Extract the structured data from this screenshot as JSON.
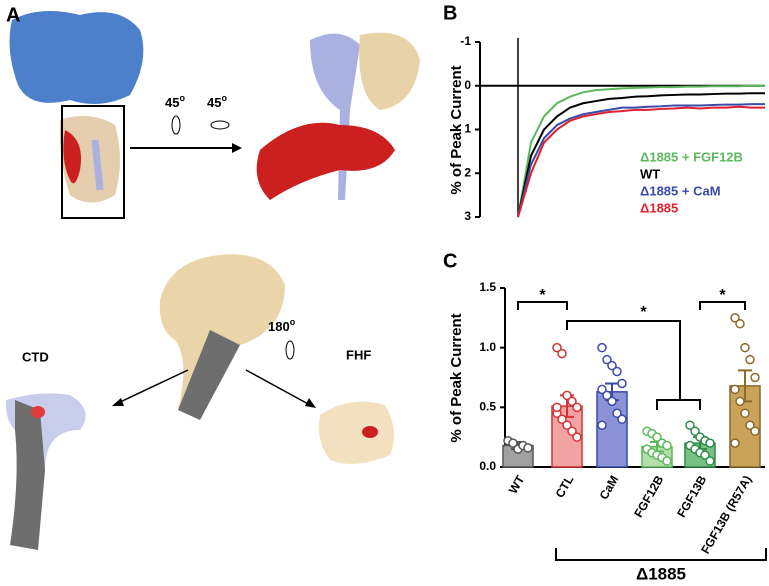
{
  "panels": {
    "A": {
      "label": "A",
      "rotations": [
        {
          "angle": "45",
          "unit": "o"
        },
        {
          "angle": "45",
          "unit": "o"
        }
      ],
      "flip": {
        "angle": "180",
        "unit": "o"
      },
      "views": [
        "CTD",
        "FHF"
      ]
    },
    "B": {
      "label": "B"
    },
    "C": {
      "label": "C"
    }
  },
  "chart_data": [
    {
      "type": "line",
      "ylabel": "% of Peak Current",
      "ylim": [
        3,
        -1
      ],
      "yticks": [
        -1,
        0,
        1,
        2,
        3
      ],
      "series": [
        {
          "name": "Δ1885 + FGF12B",
          "color": "#5cb85c",
          "values": [
            3,
            1.3,
            0.7,
            0.4,
            0.25,
            0.15,
            0.1,
            0.08,
            0.06,
            0.05,
            0.04,
            0.03,
            0.03,
            0.02,
            0.02,
            0.01,
            0.01,
            0.01,
            0,
            0
          ]
        },
        {
          "name": "WT",
          "color": "#000000",
          "values": [
            3,
            1.6,
            1.0,
            0.7,
            0.5,
            0.4,
            0.35,
            0.3,
            0.28,
            0.25,
            0.24,
            0.22,
            0.21,
            0.2,
            0.2,
            0.19,
            0.18,
            0.18,
            0.17,
            0.17
          ]
        },
        {
          "name": "Δ1885 + CaM",
          "color": "#3a4aa8",
          "values": [
            3,
            1.8,
            1.2,
            0.9,
            0.75,
            0.65,
            0.6,
            0.55,
            0.5,
            0.5,
            0.48,
            0.47,
            0.45,
            0.45,
            0.45,
            0.44,
            0.43,
            0.43,
            0.42,
            0.42
          ]
        },
        {
          "name": "Δ1885",
          "color": "#e02030",
          "values": [
            3,
            2.0,
            1.3,
            1.0,
            0.8,
            0.7,
            0.65,
            0.6,
            0.58,
            0.55,
            0.55,
            0.53,
            0.52,
            0.5,
            0.52,
            0.5,
            0.5,
            0.48,
            0.5,
            0.5
          ]
        }
      ]
    },
    {
      "type": "bar",
      "ylabel": "% of Peak Current",
      "ylim": [
        0,
        1.5
      ],
      "yticks": [
        {
          "value": 0,
          "label": "0.0"
        },
        {
          "value": 0.5,
          "label": "0.5"
        },
        {
          "value": 1,
          "label": "1.0"
        },
        {
          "value": 1.5,
          "label": "1.5"
        }
      ],
      "categories": [
        "WT",
        "CTL",
        "CaM",
        "FGF12B",
        "FGF13B",
        "FGF13B (R57A)"
      ],
      "values": [
        0.18,
        0.51,
        0.63,
        0.17,
        0.2,
        0.68
      ],
      "errors": [
        0.03,
        0.09,
        0.07,
        0.04,
        0.05,
        0.13
      ],
      "colors": [
        "#a0a0a0",
        "#f2a4a4",
        "#8b93d6",
        "#b2e0a8",
        "#78c083",
        "#c9a35a"
      ],
      "edge_colors": [
        "#555555",
        "#d33333",
        "#3a4aa8",
        "#5cb85c",
        "#2e8b4a",
        "#8b6a2a"
      ],
      "points": [
        [
          0.22,
          0.2,
          0.15,
          0.18,
          0.16
        ],
        [
          1.0,
          0.95,
          0.6,
          0.55,
          0.5,
          0.45,
          0.4,
          0.35,
          0.3,
          0.25,
          0.5
        ],
        [
          1.0,
          0.9,
          0.85,
          0.8,
          0.7,
          0.65,
          0.6,
          0.55,
          0.45,
          0.4,
          0.35
        ],
        [
          0.3,
          0.28,
          0.25,
          0.2,
          0.18,
          0.15,
          0.12,
          0.1,
          0.08,
          0.05
        ],
        [
          0.35,
          0.3,
          0.25,
          0.22,
          0.2,
          0.18,
          0.15,
          0.12,
          0.1,
          0.05
        ],
        [
          1.25,
          1.2,
          1.0,
          0.9,
          0.75,
          0.65,
          0.55,
          0.45,
          0.35,
          0.3,
          0.2
        ]
      ],
      "annotations": [
        "*",
        "*",
        "*"
      ],
      "group_label": "Δ1885"
    }
  ]
}
